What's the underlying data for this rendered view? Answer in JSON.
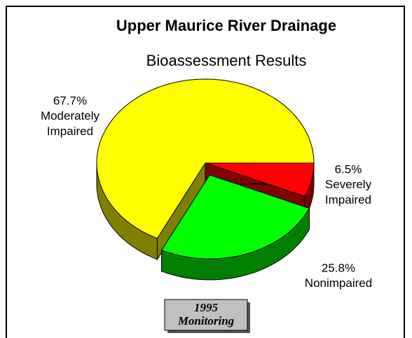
{
  "chart_data": {
    "type": "pie",
    "title": "Upper Maurice River Drainage",
    "subtitle": "Bioassessment Results",
    "categories": [
      "Moderately Impaired",
      "Nonimpaired",
      "Severely Impaired"
    ],
    "values": [
      67.7,
      25.8,
      6.5
    ],
    "value_labels": [
      "67.7%",
      "25.8%",
      "6.5%"
    ],
    "colors": [
      "#ffff00",
      "#00ff00",
      "#ff0000"
    ],
    "exploded": [
      false,
      true,
      false
    ],
    "annotation": "1995 Monitoring"
  }
}
